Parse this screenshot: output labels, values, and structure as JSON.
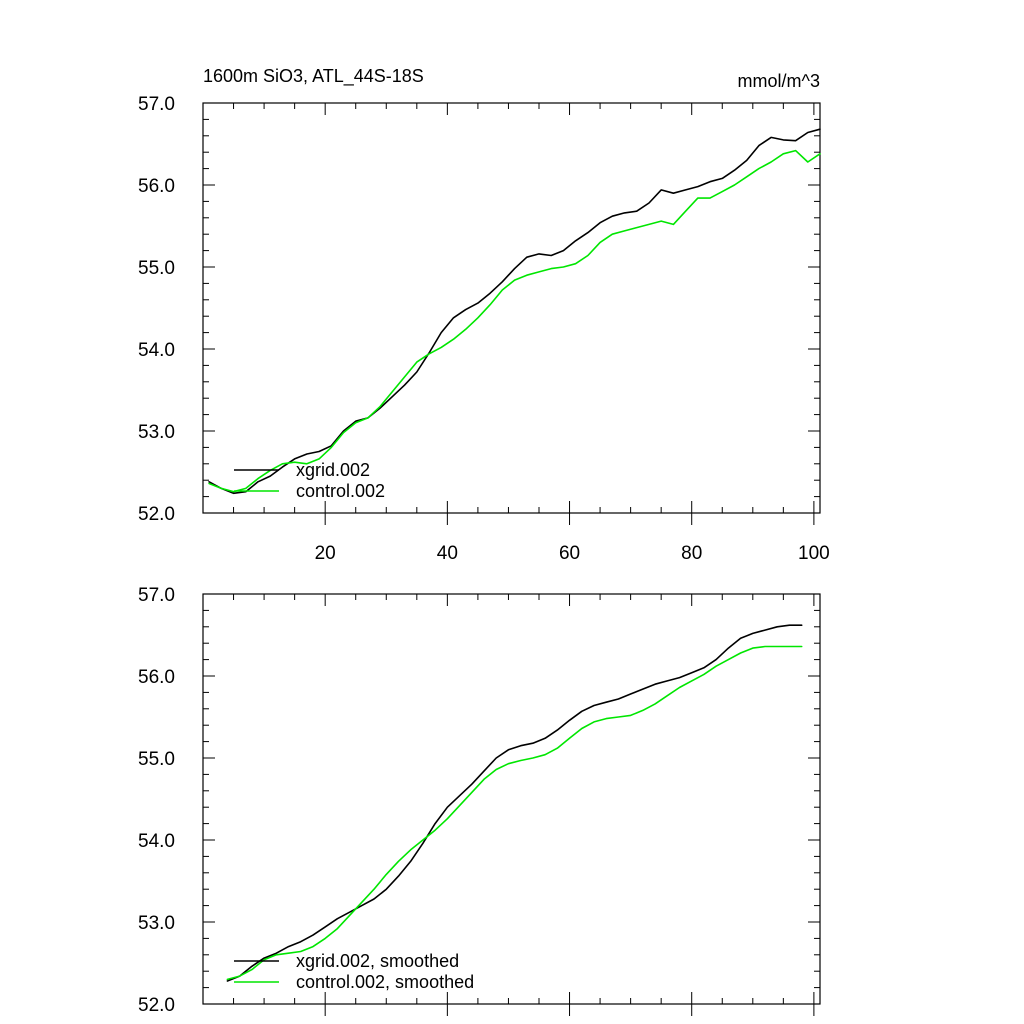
{
  "title_left": "1600m SiO3, ATL_44S-18S",
  "title_right": "mmol/m^3",
  "colors": {
    "xgrid": "#000000",
    "control": "#00e600"
  },
  "chart_data": [
    {
      "type": "line",
      "title": "1600m SiO3, ATL_44S-18S",
      "units": "mmol/m^3",
      "xlim": [
        0,
        101
      ],
      "ylim": [
        52.0,
        57.0
      ],
      "x_ticks": [
        20,
        40,
        60,
        80,
        100
      ],
      "x_tick_labels": [
        "20",
        "40",
        "60",
        "80",
        "100"
      ],
      "y_ticks": [
        52.0,
        53.0,
        54.0,
        55.0,
        56.0,
        57.0
      ],
      "y_tick_labels": [
        "52.0",
        "53.0",
        "54.0",
        "55.0",
        "56.0",
        "57.0"
      ],
      "legend": "bottom-left",
      "x": [
        1,
        3,
        5,
        7,
        9,
        11,
        13,
        15,
        17,
        19,
        21,
        23,
        25,
        27,
        29,
        31,
        33,
        35,
        37,
        39,
        41,
        43,
        45,
        47,
        49,
        51,
        53,
        55,
        57,
        59,
        61,
        63,
        65,
        67,
        69,
        71,
        73,
        75,
        77,
        79,
        81,
        83,
        85,
        87,
        89,
        91,
        93,
        95,
        97,
        99,
        101
      ],
      "series": [
        {
          "name": "xgrid.002",
          "color": "#000000",
          "values": [
            52.38,
            52.3,
            52.24,
            52.26,
            52.38,
            52.45,
            52.56,
            52.66,
            52.72,
            52.75,
            52.82,
            53.0,
            53.12,
            53.16,
            53.28,
            53.42,
            53.56,
            53.72,
            53.95,
            54.2,
            54.38,
            54.48,
            54.56,
            54.68,
            54.82,
            54.98,
            55.12,
            55.16,
            55.14,
            55.2,
            55.32,
            55.42,
            55.54,
            55.62,
            55.66,
            55.68,
            55.78,
            55.94,
            55.9,
            55.94,
            55.98,
            56.04,
            56.08,
            56.18,
            56.3,
            56.48,
            56.58,
            56.55,
            56.54,
            56.64,
            56.68
          ]
        },
        {
          "name": "control.002",
          "color": "#00e600",
          "values": [
            52.36,
            52.3,
            52.26,
            52.3,
            52.42,
            52.52,
            52.6,
            52.62,
            52.6,
            52.66,
            52.8,
            52.98,
            53.1,
            53.16,
            53.3,
            53.48,
            53.66,
            53.84,
            53.94,
            54.02,
            54.12,
            54.24,
            54.38,
            54.54,
            54.72,
            54.84,
            54.9,
            54.94,
            54.98,
            55.0,
            55.04,
            55.14,
            55.3,
            55.4,
            55.44,
            55.48,
            55.52,
            55.56,
            55.52,
            55.68,
            55.84,
            55.84,
            55.92,
            56.0,
            56.1,
            56.2,
            56.28,
            56.38,
            56.42,
            56.28,
            56.38
          ]
        }
      ]
    },
    {
      "type": "line",
      "xlim": [
        0,
        101
      ],
      "ylim": [
        52.0,
        57.0
      ],
      "x_ticks": [
        20,
        40,
        60,
        80,
        100
      ],
      "y_ticks": [
        52.0,
        53.0,
        54.0,
        55.0,
        56.0,
        57.0
      ],
      "y_tick_labels": [
        "52.0",
        "53.0",
        "54.0",
        "55.0",
        "56.0",
        "57.0"
      ],
      "legend": "bottom-left",
      "x": [
        4,
        6,
        8,
        10,
        12,
        14,
        16,
        18,
        20,
        22,
        24,
        26,
        28,
        30,
        32,
        34,
        36,
        38,
        40,
        42,
        44,
        46,
        48,
        50,
        52,
        54,
        56,
        58,
        60,
        62,
        64,
        66,
        68,
        70,
        72,
        74,
        76,
        78,
        80,
        82,
        84,
        86,
        88,
        90,
        92,
        94,
        96,
        98
      ],
      "series": [
        {
          "name": "xgrid.002, smoothed",
          "color": "#000000",
          "values": [
            52.28,
            52.34,
            52.46,
            52.56,
            52.62,
            52.7,
            52.76,
            52.84,
            52.94,
            53.04,
            53.12,
            53.2,
            53.28,
            53.4,
            53.56,
            53.74,
            53.96,
            54.2,
            54.4,
            54.54,
            54.68,
            54.84,
            55.0,
            55.1,
            55.15,
            55.18,
            55.24,
            55.34,
            55.46,
            55.57,
            55.64,
            55.68,
            55.72,
            55.78,
            55.84,
            55.9,
            55.94,
            55.98,
            56.04,
            56.1,
            56.2,
            56.34,
            56.46,
            56.52,
            56.56,
            56.6,
            56.62,
            56.62
          ]
        },
        {
          "name": "control.002, smoothed",
          "color": "#00e600",
          "values": [
            52.3,
            52.34,
            52.42,
            52.54,
            52.6,
            52.62,
            52.64,
            52.7,
            52.8,
            52.92,
            53.08,
            53.24,
            53.4,
            53.58,
            53.74,
            53.88,
            54.0,
            54.12,
            54.26,
            54.42,
            54.58,
            54.74,
            54.86,
            54.93,
            54.97,
            55.0,
            55.04,
            55.12,
            55.24,
            55.36,
            55.44,
            55.48,
            55.5,
            55.52,
            55.58,
            55.66,
            55.76,
            55.86,
            55.94,
            56.02,
            56.12,
            56.2,
            56.28,
            56.34,
            56.36,
            56.36,
            56.36,
            56.36
          ]
        }
      ]
    }
  ]
}
